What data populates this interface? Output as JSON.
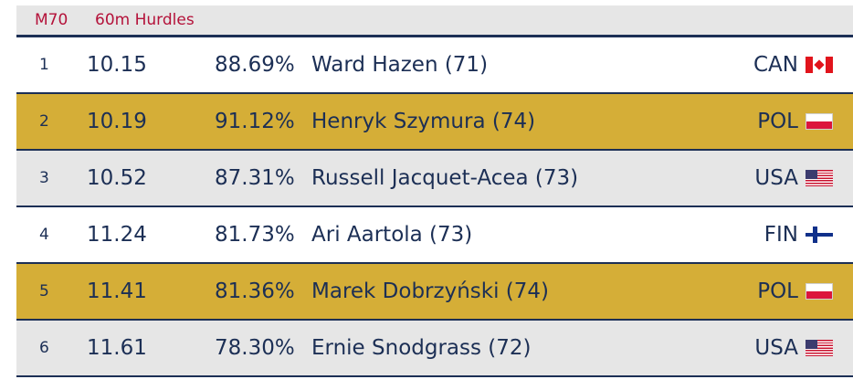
{
  "header": {
    "category": "M70",
    "event": "60m Hurdles"
  },
  "results": [
    {
      "place": "1",
      "time": "10.15",
      "age_grade": "88.69%",
      "athlete": "Ward Hazen (71)",
      "country": "CAN",
      "flag_icon": "canada-flag-icon",
      "row_style": "white"
    },
    {
      "place": "2",
      "time": "10.19",
      "age_grade": "91.12%",
      "athlete": "Henryk Szymura (74)",
      "country": "POL",
      "flag_icon": "poland-flag-icon",
      "row_style": "gold"
    },
    {
      "place": "3",
      "time": "10.52",
      "age_grade": "87.31%",
      "athlete": "Russell Jacquet-Acea (73)",
      "country": "USA",
      "flag_icon": "usa-flag-icon",
      "row_style": "gray"
    },
    {
      "place": "4",
      "time": "11.24",
      "age_grade": "81.73%",
      "athlete": "Ari Aartola (73)",
      "country": "FIN",
      "flag_icon": "finland-flag-icon",
      "row_style": "white"
    },
    {
      "place": "5",
      "time": "11.41",
      "age_grade": "81.36%",
      "athlete": "Marek Dobrzyński (74)",
      "country": "POL",
      "flag_icon": "poland-flag-icon",
      "row_style": "gold"
    },
    {
      "place": "6",
      "time": "11.61",
      "age_grade": "78.30%",
      "athlete": "Ernie Snodgrass (72)",
      "country": "USA",
      "flag_icon": "usa-flag-icon",
      "row_style": "gray"
    }
  ],
  "colors": {
    "header_text": "#b4123a",
    "body_text": "#1c2f55",
    "highlight": "#d5ae37",
    "alt_row": "#e6e6e6"
  }
}
